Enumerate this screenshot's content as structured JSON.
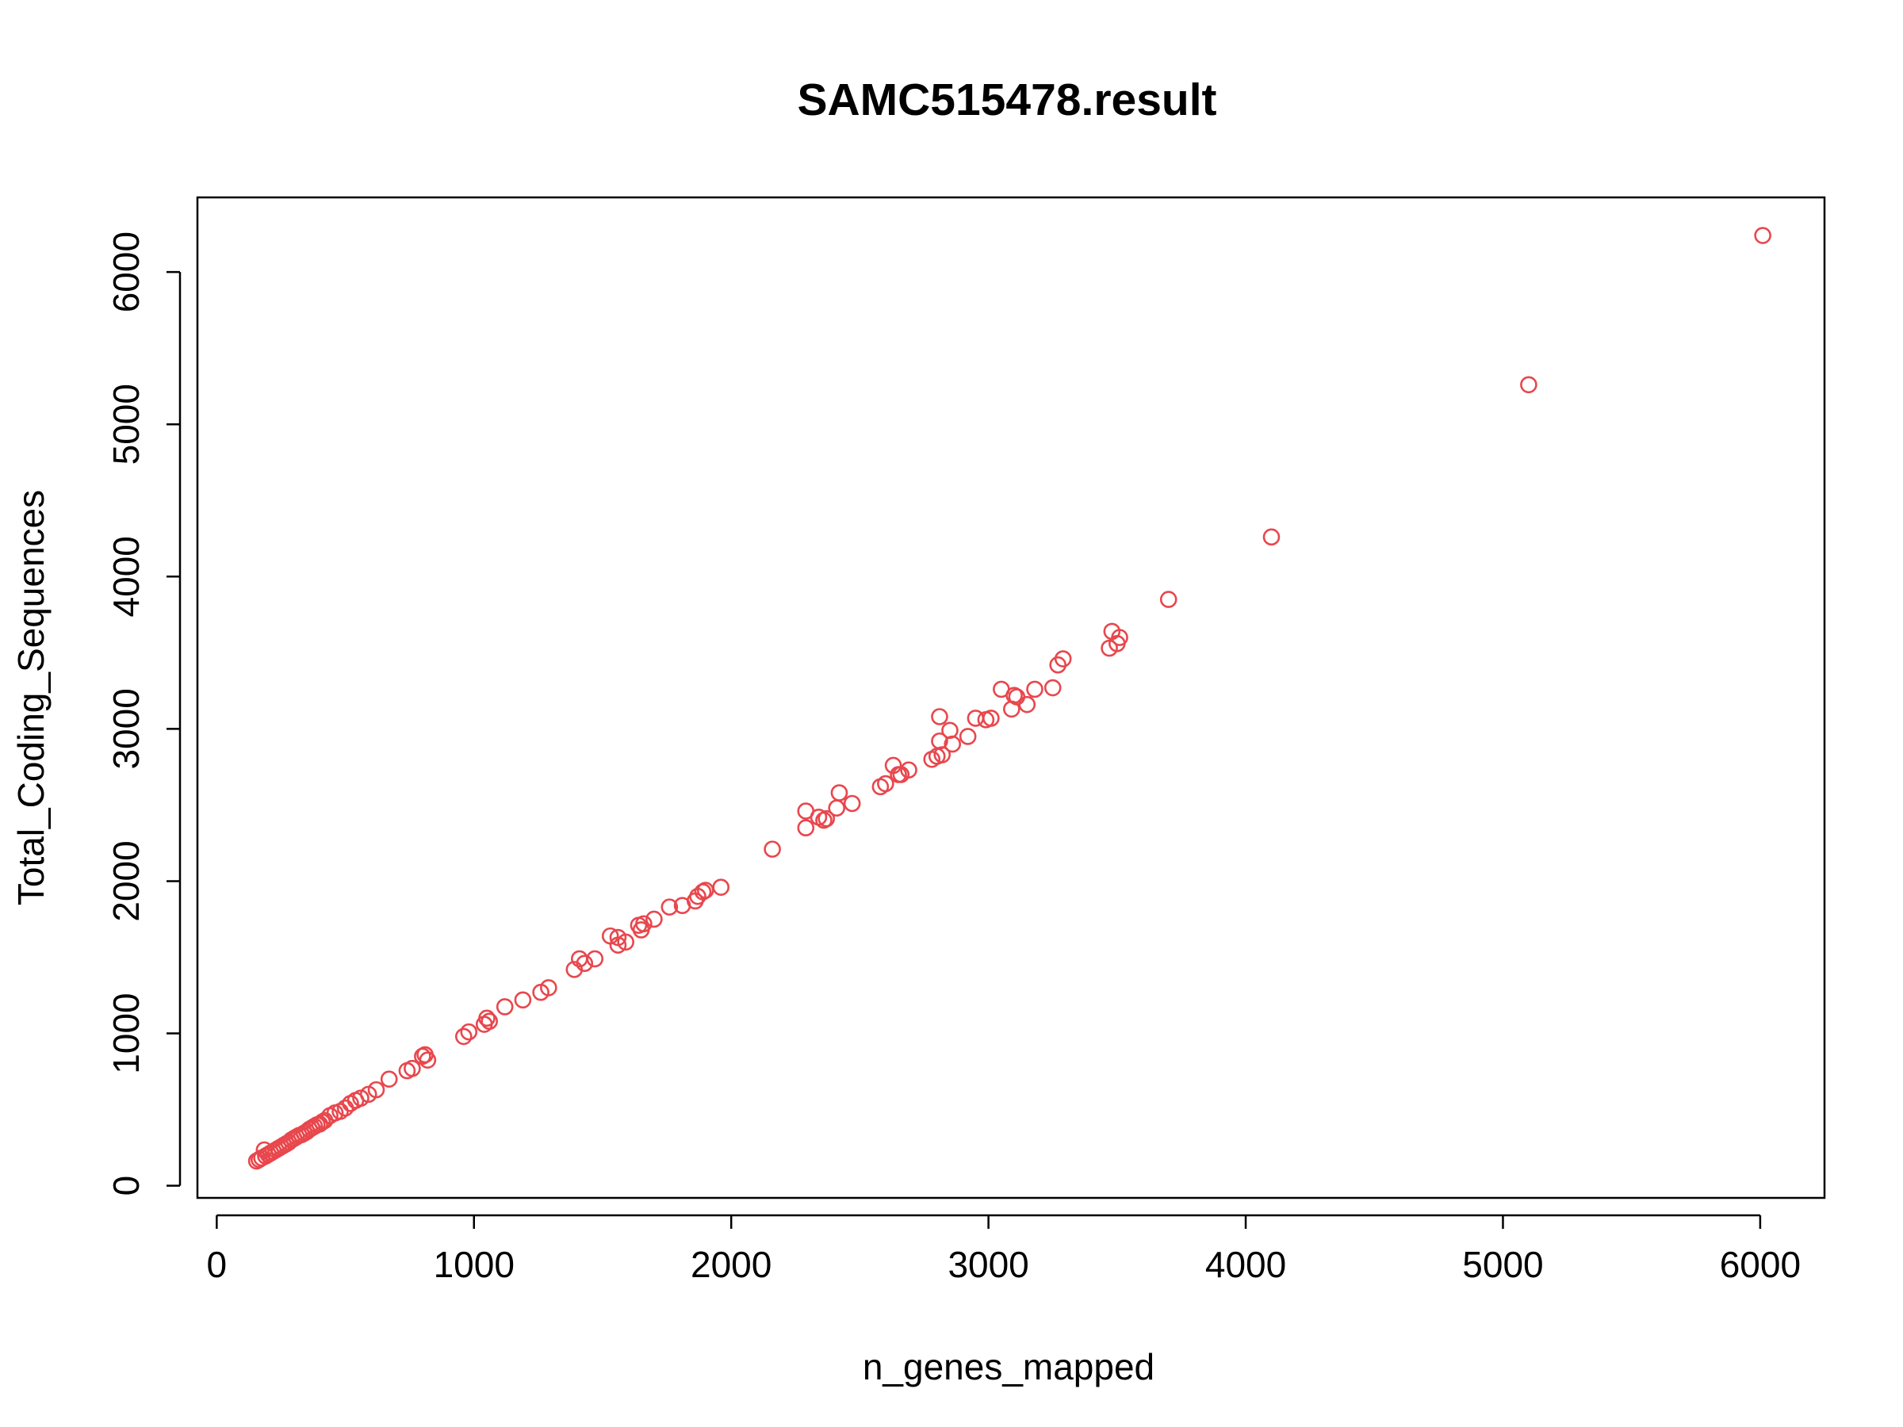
{
  "chart_data": {
    "type": "scatter",
    "title": "SAMC515478.result",
    "xlabel": "n_genes_mapped",
    "ylabel": "Total_Coding_Sequences",
    "xlim": [
      -75,
      6250
    ],
    "ylim": [
      -80,
      6490
    ],
    "xticks": [
      0,
      1000,
      2000,
      3000,
      4000,
      5000,
      6000
    ],
    "yticks": [
      0,
      1000,
      2000,
      3000,
      4000,
      5000,
      6000
    ],
    "xtick_labels": [
      "0",
      "1000",
      "2000",
      "3000",
      "4000",
      "5000",
      "6000"
    ],
    "ytick_labels": [
      "0",
      "1000",
      "2000",
      "3000",
      "4000",
      "5000",
      "6000"
    ],
    "grid": false,
    "legend": "none",
    "marker": "open-circle",
    "point_color": "#e8474d",
    "points": [
      [
        155,
        162
      ],
      [
        165,
        172
      ],
      [
        175,
        182
      ],
      [
        185,
        235
      ],
      [
        190,
        195
      ],
      [
        200,
        205
      ],
      [
        210,
        215
      ],
      [
        220,
        225
      ],
      [
        230,
        235
      ],
      [
        240,
        245
      ],
      [
        250,
        255
      ],
      [
        260,
        265
      ],
      [
        270,
        275
      ],
      [
        280,
        285
      ],
      [
        290,
        300
      ],
      [
        300,
        310
      ],
      [
        310,
        320
      ],
      [
        320,
        330
      ],
      [
        330,
        335
      ],
      [
        340,
        345
      ],
      [
        350,
        355
      ],
      [
        360,
        370
      ],
      [
        370,
        380
      ],
      [
        380,
        390
      ],
      [
        390,
        400
      ],
      [
        400,
        405
      ],
      [
        410,
        418
      ],
      [
        420,
        428
      ],
      [
        440,
        460
      ],
      [
        460,
        478
      ],
      [
        480,
        488
      ],
      [
        500,
        510
      ],
      [
        520,
        540
      ],
      [
        540,
        560
      ],
      [
        560,
        575
      ],
      [
        590,
        600
      ],
      [
        620,
        630
      ],
      [
        670,
        700
      ],
      [
        740,
        755
      ],
      [
        760,
        770
      ],
      [
        800,
        850
      ],
      [
        810,
        860
      ],
      [
        820,
        825
      ],
      [
        960,
        980
      ],
      [
        980,
        1010
      ],
      [
        1040,
        1060
      ],
      [
        1050,
        1100
      ],
      [
        1060,
        1080
      ],
      [
        1120,
        1175
      ],
      [
        1190,
        1220
      ],
      [
        1260,
        1270
      ],
      [
        1290,
        1300
      ],
      [
        1390,
        1420
      ],
      [
        1410,
        1490
      ],
      [
        1430,
        1460
      ],
      [
        1470,
        1490
      ],
      [
        1530,
        1640
      ],
      [
        1560,
        1630
      ],
      [
        1560,
        1580
      ],
      [
        1590,
        1600
      ],
      [
        1640,
        1710
      ],
      [
        1650,
        1680
      ],
      [
        1660,
        1720
      ],
      [
        1700,
        1750
      ],
      [
        1760,
        1830
      ],
      [
        1810,
        1840
      ],
      [
        1860,
        1870
      ],
      [
        1870,
        1900
      ],
      [
        1890,
        1930
      ],
      [
        1900,
        1940
      ],
      [
        1960,
        1960
      ],
      [
        2160,
        2210
      ],
      [
        2290,
        2350
      ],
      [
        2290,
        2460
      ],
      [
        2340,
        2420
      ],
      [
        2360,
        2400
      ],
      [
        2370,
        2410
      ],
      [
        2410,
        2480
      ],
      [
        2420,
        2580
      ],
      [
        2470,
        2510
      ],
      [
        2580,
        2620
      ],
      [
        2600,
        2640
      ],
      [
        2630,
        2760
      ],
      [
        2650,
        2700
      ],
      [
        2660,
        2700
      ],
      [
        2690,
        2730
      ],
      [
        2780,
        2800
      ],
      [
        2800,
        2820
      ],
      [
        2810,
        2920
      ],
      [
        2810,
        3080
      ],
      [
        2820,
        2830
      ],
      [
        2850,
        2990
      ],
      [
        2860,
        2900
      ],
      [
        2920,
        2950
      ],
      [
        2950,
        3070
      ],
      [
        2990,
        3060
      ],
      [
        3010,
        3070
      ],
      [
        3050,
        3260
      ],
      [
        3090,
        3130
      ],
      [
        3100,
        3220
      ],
      [
        3110,
        3210
      ],
      [
        3150,
        3160
      ],
      [
        3180,
        3260
      ],
      [
        3250,
        3270
      ],
      [
        3270,
        3420
      ],
      [
        3290,
        3460
      ],
      [
        3470,
        3530
      ],
      [
        3480,
        3640
      ],
      [
        3500,
        3560
      ],
      [
        3510,
        3600
      ],
      [
        3700,
        3850
      ],
      [
        4100,
        4260
      ],
      [
        5100,
        5260
      ],
      [
        6010,
        6240
      ]
    ]
  }
}
